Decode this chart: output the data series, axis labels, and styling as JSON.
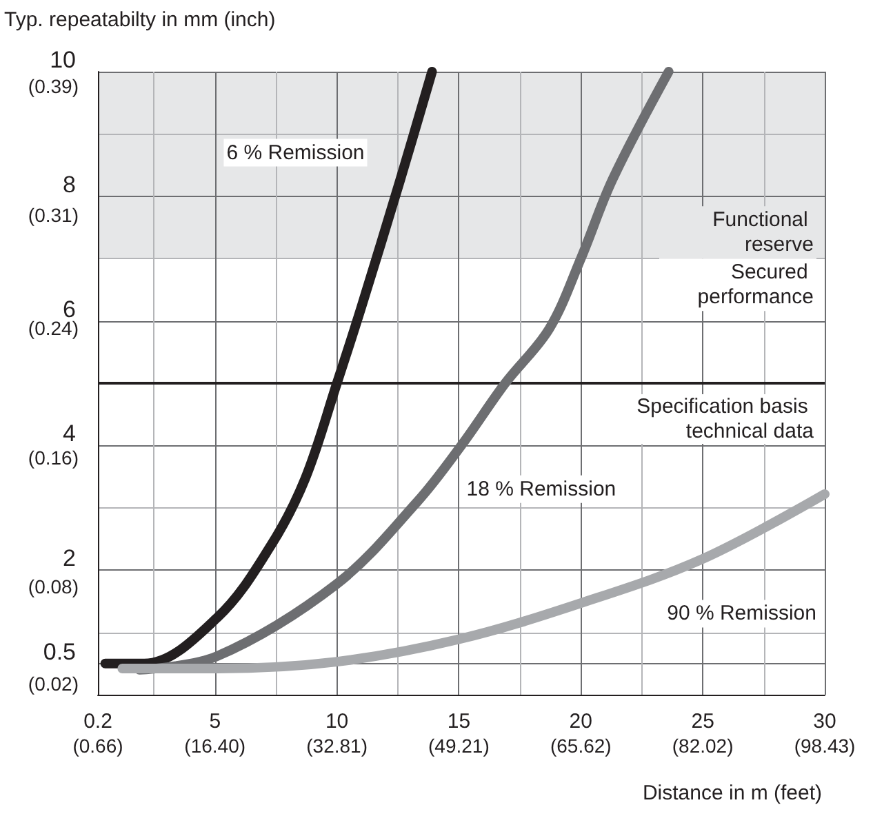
{
  "chart_data": {
    "type": "line",
    "xlabel": "Distance in m (feet)",
    "ylabel": "Typ. repeatabilty in mm (inch)",
    "xlim": [
      0.2,
      30
    ],
    "xticks": [
      0.2,
      {
        "value": 2.5,
        "label": null
      },
      5,
      {
        "value": 7.5,
        "label": null
      },
      10,
      {
        "value": 12.5,
        "label": null
      },
      15,
      {
        "value": 17.5,
        "label": null
      },
      20,
      {
        "value": 22.5,
        "label": null
      },
      25,
      {
        "value": 27.5,
        "label": null
      },
      30
    ],
    "x2lim": [
      0.66,
      98.43
    ],
    "x2ticks": [
      {
        "value": 0.66,
        "label": "(0.66)"
      },
      {
        "value": 16.4,
        "label": "(16.40)"
      },
      {
        "value": 32.81,
        "label": "(32.81)"
      },
      {
        "value": 49.21,
        "label": "(49.21)"
      },
      {
        "value": 65.62,
        "label": "(65.62)"
      },
      {
        "value": 82.02,
        "label": "(82.02)"
      },
      {
        "value": 98.43,
        "label": "(98.43)"
      }
    ],
    "ylim": [
      0,
      10
    ],
    "yticks": [
      0.5,
      {
        "value": 1,
        "label": null
      },
      2,
      {
        "value": 3,
        "label": null
      },
      4,
      {
        "value": 5,
        "label": null
      },
      6,
      {
        "value": 7,
        "label": null
      },
      8,
      {
        "value": 9,
        "label": null
      },
      10
    ],
    "y2lim": [
      0.013,
      0.399
    ],
    "y2ticks": [
      {
        "value": 0.02,
        "label": "(0.02)"
      },
      {
        "value": 0.08,
        "label": "(0.08)"
      },
      {
        "value": 0.16,
        "label": "(0.16)"
      },
      {
        "value": 0.24,
        "label": "(0.24)"
      },
      {
        "value": 0.31,
        "label": "(0.31)"
      },
      {
        "value": 0.39,
        "label": "(0.39)"
      }
    ],
    "grid": true,
    "legend": false,
    "marker": "none",
    "line_style": "solid",
    "series": [
      {
        "name": "6 % Remission",
        "color": "#231f20",
        "x": [
          0.5,
          2.1,
          5.1,
          7.3,
          8.7,
          10,
          11,
          12.6,
          13.9
        ],
        "values": [
          0.5,
          0.5,
          1.24,
          2.4,
          3.47,
          5,
          6.22,
          8.27,
          10
        ]
      },
      {
        "name": "18 % Remission",
        "color": "#6d6e71",
        "x": [
          1.9,
          5.1,
          10,
          13.3,
          15.1,
          16.9,
          18.7,
          20,
          21.3,
          23.6
        ],
        "values": [
          0.4,
          0.62,
          1.78,
          3.1,
          4,
          5,
          5.87,
          7,
          8.27,
          10
        ]
      },
      {
        "name": "90 % Remission",
        "color": "#a7a9ac",
        "x": [
          1.2,
          5.1,
          10,
          15,
          20,
          25,
          30
        ],
        "values": [
          0.42,
          0.42,
          0.53,
          0.89,
          1.47,
          2.18,
          3.22
        ]
      }
    ],
    "bands": [
      {
        "axis": "y",
        "from": 7,
        "to": 10,
        "label": "Functional reserve",
        "color": "#e6e7e8"
      }
    ],
    "ref_lines": [
      {
        "axis": "y",
        "value": 5,
        "label": "Specification basis technical data",
        "color": "#231f20"
      }
    ],
    "annotations": [
      "Secured performance"
    ]
  }
}
